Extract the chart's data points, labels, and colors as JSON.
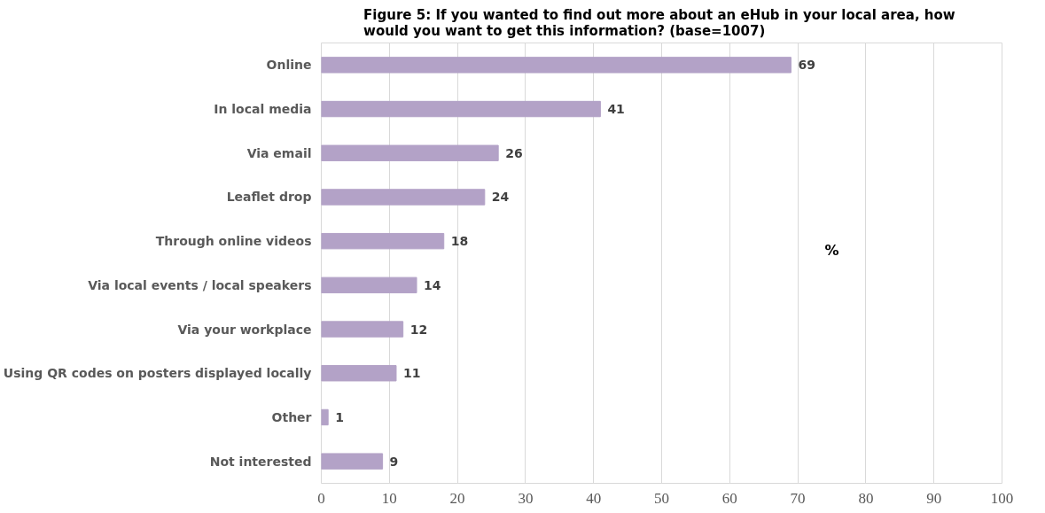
{
  "chart_data": {
    "type": "bar",
    "orientation": "horizontal",
    "title": "Figure 5:  If you wanted to find out more about an eHub in your local area, how would you want to get this information? (base=1007)",
    "categories": [
      "Online",
      "In local media",
      "Via email",
      "Leaflet drop",
      "Through online videos",
      "Via local events / local speakers",
      "Via your workplace",
      "Using QR codes on posters displayed locally",
      "Other",
      "Not interested"
    ],
    "values": [
      69,
      41,
      26,
      24,
      18,
      14,
      12,
      11,
      1,
      9
    ],
    "color": "#b3a2c7",
    "xlim": [
      0,
      100
    ],
    "xticks": [
      0,
      10,
      20,
      30,
      40,
      50,
      60,
      70,
      80,
      90,
      100
    ],
    "grid": "x",
    "data_labels": true,
    "annotations": [
      "%"
    ]
  }
}
